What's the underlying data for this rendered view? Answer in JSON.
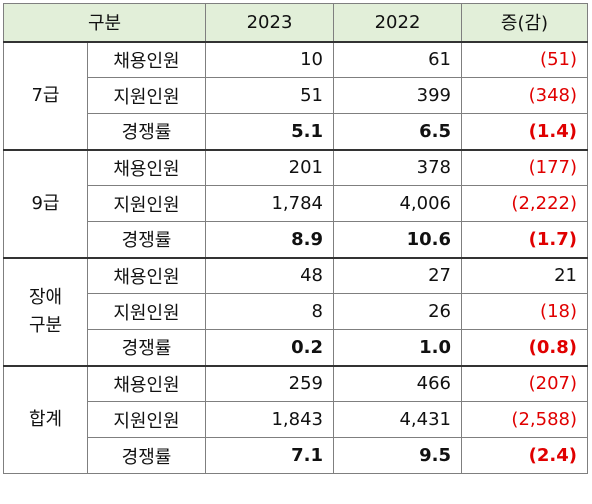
{
  "header": {
    "category": "구분",
    "year_a": "2023",
    "year_b": "2022",
    "change": "증(감)"
  },
  "groups": [
    {
      "label": "7급",
      "rows": [
        {
          "metric": "채용인원",
          "a": "10",
          "b": "61",
          "diff": "(51)"
        },
        {
          "metric": "지원인원",
          "a": "51",
          "b": "399",
          "diff": "(348)"
        },
        {
          "metric": "경쟁률",
          "a": "5.1",
          "b": "6.5",
          "diff": "(1.4)"
        }
      ]
    },
    {
      "label": "9급",
      "rows": [
        {
          "metric": "채용인원",
          "a": "201",
          "b": "378",
          "diff": "(177)"
        },
        {
          "metric": "지원인원",
          "a": "1,784",
          "b": "4,006",
          "diff": "(2,222)"
        },
        {
          "metric": "경쟁률",
          "a": "8.9",
          "b": "10.6",
          "diff": "(1.7)"
        }
      ]
    },
    {
      "label_line1": "장애",
      "label_line2": "구분",
      "rows": [
        {
          "metric": "채용인원",
          "a": "48",
          "b": "27",
          "diff": "21"
        },
        {
          "metric": "지원인원",
          "a": "8",
          "b": "26",
          "diff": "(18)"
        },
        {
          "metric": "경쟁률",
          "a": "0.2",
          "b": "1.0",
          "diff": "(0.8)"
        }
      ]
    },
    {
      "label": "합계",
      "rows": [
        {
          "metric": "채용인원",
          "a": "259",
          "b": "466",
          "diff": "(207)"
        },
        {
          "metric": "지원인원",
          "a": "1,843",
          "b": "4,431",
          "diff": "(2,588)"
        },
        {
          "metric": "경쟁률",
          "a": "7.1",
          "b": "9.5",
          "diff": "(2.4)"
        }
      ]
    }
  ],
  "colors": {
    "header_bg": "#e2efd9",
    "negative": "#e00000",
    "border": "#7f7f7f"
  }
}
